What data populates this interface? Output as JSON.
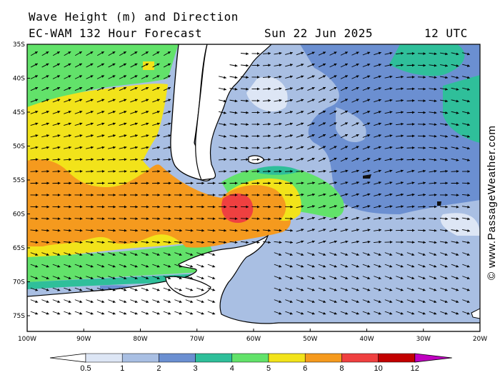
{
  "header": {
    "title": "Wave Height (m) and Direction",
    "model": "EC-WAM 132 Hour Forecast",
    "date": "Sun 22 Jun 2025",
    "time": "12 UTC"
  },
  "credit": "© www.PassageWeather.com",
  "map": {
    "lat_labels": [
      "35S",
      "40S",
      "45S",
      "50S",
      "55S",
      "60S",
      "65S",
      "70S",
      "75S"
    ],
    "lon_labels": [
      "100W",
      "90W",
      "80W",
      "70W",
      "60W",
      "50W",
      "40W",
      "30W",
      "20W"
    ]
  },
  "legend": {
    "labels": [
      "0.5",
      "1",
      "2",
      "3",
      "4",
      "5",
      "6",
      "8",
      "10",
      "12"
    ],
    "colors": [
      "#dde6f5",
      "#a9bfe3",
      "#6b8fd1",
      "#2fbf9a",
      "#62e26a",
      "#f2e31a",
      "#f59a1e",
      "#ef4040",
      "#c20000",
      "#c000c0"
    ]
  }
}
